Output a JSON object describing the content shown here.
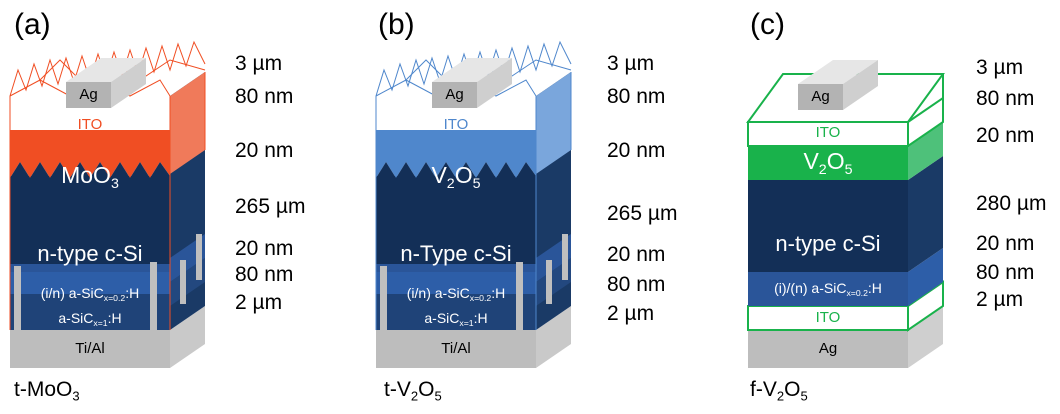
{
  "colors": {
    "mo_orange": "#f04e23",
    "v_blue": "#4f87cc",
    "v_green": "#19b24b",
    "green_line": "#19b24b",
    "si_navy": "#132f57",
    "layer_blue": "#2a5599",
    "gray_contact": "#bfbfbf"
  },
  "panels": [
    {
      "label": "(a)",
      "caption": "t-MoO",
      "caption_sub": "3",
      "ag": "Ag",
      "ito": "ITO",
      "oxide_main": "MoO",
      "oxide_sub": "3",
      "silicon": "n-type c-Si",
      "layer1_main": "(i/n) a-SiC",
      "layer1_sub": "x=0.2",
      "layer1_tail": ":H",
      "layer2_main": "a-SiC",
      "layer2_sub": "x=1",
      "layer2_tail": ":H",
      "back": "Ti/Al",
      "thicknesses": [
        "3 µm",
        "80 nm",
        "20 nm",
        "265 µm",
        "20 nm",
        "80 nm",
        "2 µm"
      ]
    },
    {
      "label": "(b)",
      "caption": "t-V",
      "caption_sub": "2",
      "caption_mid": "O",
      "caption_sub2": "5",
      "ag": "Ag",
      "ito": "ITO",
      "oxide_main": "V",
      "oxide_sub": "2",
      "oxide_mid": "O",
      "oxide_sub2": "5",
      "silicon": "n-Type c-Si",
      "layer1_main": "(i/n) a-SiC",
      "layer1_sub": "x=0.2",
      "layer1_tail": ":H",
      "layer2_main": "a-SiC",
      "layer2_sub": "x=1",
      "layer2_tail": ":H",
      "back": "Ti/Al",
      "thicknesses": [
        "3 µm",
        "80 nm",
        "20 nm",
        "265 µm",
        "20 nm",
        "80 nm",
        "2 µm"
      ]
    },
    {
      "label": "(c)",
      "caption": "f-V",
      "caption_sub": "2",
      "caption_mid": "O",
      "caption_sub2": "5",
      "ag": "Ag",
      "ito": "ITO",
      "oxide_main": "V",
      "oxide_sub": "2",
      "oxide_mid": "O",
      "oxide_sub2": "5",
      "silicon": "n-type c-Si",
      "layer1_main": "(i)/(n) a-SiC",
      "layer1_sub": "x=0.2",
      "layer1_tail": ":H",
      "ito_bottom": "ITO",
      "back": "Ag",
      "thicknesses": [
        "3 µm",
        "80 nm",
        "20 nm",
        "280 µm",
        "20 nm",
        "80 nm",
        "2 µm"
      ]
    }
  ]
}
